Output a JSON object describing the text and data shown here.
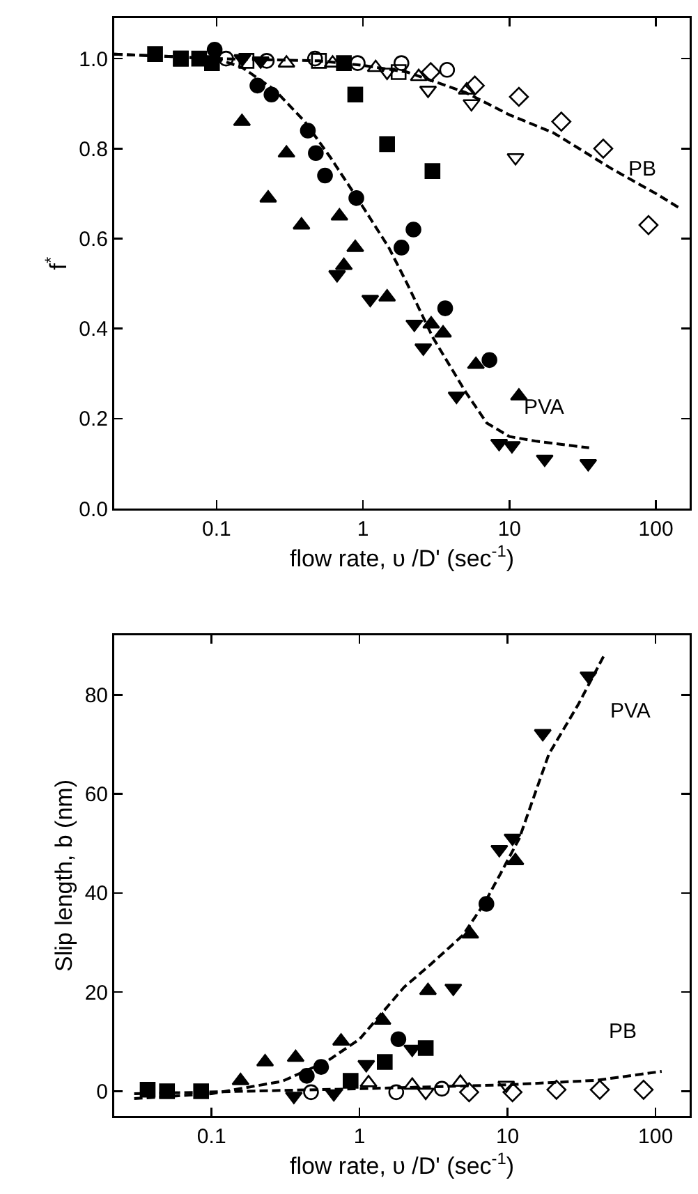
{
  "chart_data": [
    {
      "type": "scatter",
      "xlabel": "flow rate, υ /D' (sec$^{-1}$)",
      "ylabel": "f$^{*}$",
      "log": "x",
      "grid": false,
      "legend": false,
      "xlim": [
        0.02,
        170
      ],
      "xticks": [
        0.1,
        1,
        10,
        100
      ],
      "ylim": [
        0,
        1.09
      ],
      "yticks": [
        {
          "value": 0,
          "label": "0.0"
        },
        0.2,
        0.4,
        0.6,
        0.8,
        {
          "value": 1,
          "label": "1.0"
        }
      ],
      "series": [
        {
          "type": "line",
          "name": "PB",
          "line_style": "dashed",
          "marker": "none",
          "color": "#000000",
          "x": [
            0.02,
            0.1,
            0.5,
            1,
            2,
            5,
            10,
            20,
            50,
            100,
            150
          ],
          "values": [
            1.01,
            1.0,
            0.995,
            0.985,
            0.97,
            0.925,
            0.875,
            0.835,
            0.755,
            0.7,
            0.665
          ]
        },
        {
          "type": "line",
          "name": "PVA",
          "line_style": "dashed",
          "marker": "none",
          "color": "#000000",
          "x": [
            0.02,
            0.1,
            0.15,
            0.25,
            0.4,
            0.6,
            1,
            1.5,
            2,
            3,
            5,
            7,
            10,
            15,
            35
          ],
          "values": [
            1.01,
            1.0,
            0.98,
            0.93,
            0.86,
            0.78,
            0.67,
            0.58,
            0.5,
            0.38,
            0.26,
            0.19,
            0.16,
            0.15,
            0.135
          ]
        },
        {
          "marker": "square",
          "color": "#000000",
          "x": [
            0.038,
            0.057,
            0.076,
            0.093,
            0.74,
            0.885,
            1.46,
            2.98
          ],
          "values": [
            1.01,
            1.0,
            1.0,
            0.99,
            0.99,
            0.92,
            0.81,
            0.75
          ]
        },
        {
          "marker": "circle",
          "color": "#000000",
          "x": [
            0.097,
            0.19,
            0.237,
            0.42,
            0.476,
            0.55,
            0.9,
            1.83,
            2.21,
            3.64,
            7.3
          ],
          "values": [
            1.02,
            0.94,
            0.92,
            0.84,
            0.79,
            0.74,
            0.69,
            0.58,
            0.62,
            0.445,
            0.33
          ]
        },
        {
          "marker": "triangle",
          "color": "#000000",
          "x": [
            0.149,
            0.225,
            0.3,
            0.38,
            0.69,
            0.74,
            0.885,
            1.46,
            2.92,
            3.52,
            5.9,
            11.6
          ],
          "values": [
            0.86,
            0.69,
            0.79,
            0.63,
            0.65,
            0.54,
            0.58,
            0.47,
            0.41,
            0.39,
            0.32,
            0.25
          ]
        },
        {
          "marker": "triangle-down",
          "color": "#000000",
          "x": [
            0.15,
            0.2,
            0.665,
            1.12,
            2.24,
            2.58,
            4.35,
            8.5,
            10.4,
            17.4,
            34.5
          ],
          "values": [
            1.0,
            0.995,
            0.52,
            0.465,
            0.41,
            0.357,
            0.25,
            0.145,
            0.14,
            0.11,
            0.1
          ]
        },
        {
          "marker": "square-open",
          "color": "#000000",
          "x": [
            0.057,
            0.16,
            0.5,
            1.75
          ],
          "values": [
            1.0,
            0.995,
            0.995,
            0.97
          ]
        },
        {
          "marker": "circle-open",
          "color": "#000000",
          "x": [
            0.116,
            0.22,
            0.47,
            0.92,
            1.83,
            3.75
          ],
          "values": [
            1.0,
            0.995,
            1.0,
            0.99,
            0.99,
            0.975
          ]
        },
        {
          "marker": "triangle-open",
          "color": "#000000",
          "x": [
            0.3,
            0.62,
            1.22,
            2.4,
            5.1
          ],
          "values": [
            0.99,
            0.99,
            0.98,
            0.96,
            0.93
          ]
        },
        {
          "marker": "triangle-down-open",
          "color": "#000000",
          "x": [
            1.46,
            2.78,
            5.5,
            11
          ],
          "values": [
            0.97,
            0.93,
            0.9,
            0.78
          ]
        },
        {
          "marker": "diamond-open",
          "color": "#000000",
          "x": [
            2.9,
            5.8,
            11.6,
            22.6,
            43.7,
            89
          ],
          "values": [
            0.97,
            0.94,
            0.915,
            0.86,
            0.8,
            0.63
          ]
        }
      ]
    },
    {
      "type": "scatter",
      "xlabel": "flow rate, υ /D' (sec$^{-1}$)",
      "ylabel": "Slip length, b (nm)",
      "log": "x",
      "grid": false,
      "legend": false,
      "xlim": [
        0.022,
        170
      ],
      "xticks": [
        0.1,
        1,
        10,
        100
      ],
      "ylim": [
        -5,
        92
      ],
      "yticks": [
        0,
        20,
        40,
        60,
        80
      ],
      "series": [
        {
          "type": "line",
          "name": "PVA",
          "line_style": "dashed",
          "marker": "none",
          "color": "#000000",
          "x": [
            0.03,
            0.1,
            0.3,
            0.6,
            1,
            2,
            3,
            5,
            7,
            9,
            12,
            19,
            30,
            45
          ],
          "values": [
            -1.5,
            -0.5,
            2,
            6,
            10.5,
            21,
            25.5,
            31.5,
            38,
            44,
            51,
            68,
            78,
            88
          ]
        },
        {
          "type": "line",
          "name": "PB",
          "line_style": "dashed",
          "marker": "none",
          "color": "#000000",
          "x": [
            0.03,
            1,
            10,
            40,
            110
          ],
          "values": [
            -0.5,
            0.5,
            1.3,
            2.2,
            4
          ]
        },
        {
          "marker": "square",
          "color": "#000000",
          "x": [
            0.037,
            0.05,
            0.085,
            0.87,
            1.48,
            2.8
          ],
          "values": [
            0.3,
            0,
            0,
            2.1,
            5.9,
            8.7
          ]
        },
        {
          "marker": "circle",
          "color": "#000000",
          "x": [
            0.44,
            0.55,
            1.83,
            7.2
          ],
          "values": [
            3.1,
            4.9,
            10.5,
            37.8
          ]
        },
        {
          "marker": "triangle",
          "color": "#000000",
          "x": [
            0.157,
            0.23,
            0.37,
            0.75,
            1.43,
            2.9,
            5.6,
            11.3
          ],
          "values": [
            2.1,
            5.9,
            6.8,
            10.1,
            14.3,
            20.3,
            31.7,
            46.5
          ]
        },
        {
          "marker": "triangle-down",
          "color": "#000000",
          "x": [
            0.36,
            0.67,
            1.11,
            2.27,
            4.3,
            8.8,
            10.8,
            17.3,
            35.2
          ],
          "values": [
            -1,
            -0.5,
            5.4,
            8.5,
            20.8,
            48.8,
            51.1,
            72.2,
            83.8
          ]
        },
        {
          "marker": "circle-open",
          "color": "#000000",
          "x": [
            0.47,
            1.77,
            3.6
          ],
          "values": [
            -0.2,
            -0.2,
            0.5
          ]
        },
        {
          "marker": "triangle-open",
          "color": "#000000",
          "x": [
            1.15,
            2.27,
            4.8
          ],
          "values": [
            1.7,
            1.2,
            1.8
          ]
        },
        {
          "marker": "triangle-down-open",
          "color": "#000000",
          "x": [
            2.8,
            9.8
          ],
          "values": [
            -0.2,
            1.2
          ]
        },
        {
          "marker": "diamond-open",
          "color": "#000000",
          "x": [
            5.5,
            10.8,
            21.4,
            42,
            83
          ],
          "values": [
            -0.2,
            -0.2,
            0.3,
            0.3,
            0.3
          ]
        }
      ]
    }
  ]
}
